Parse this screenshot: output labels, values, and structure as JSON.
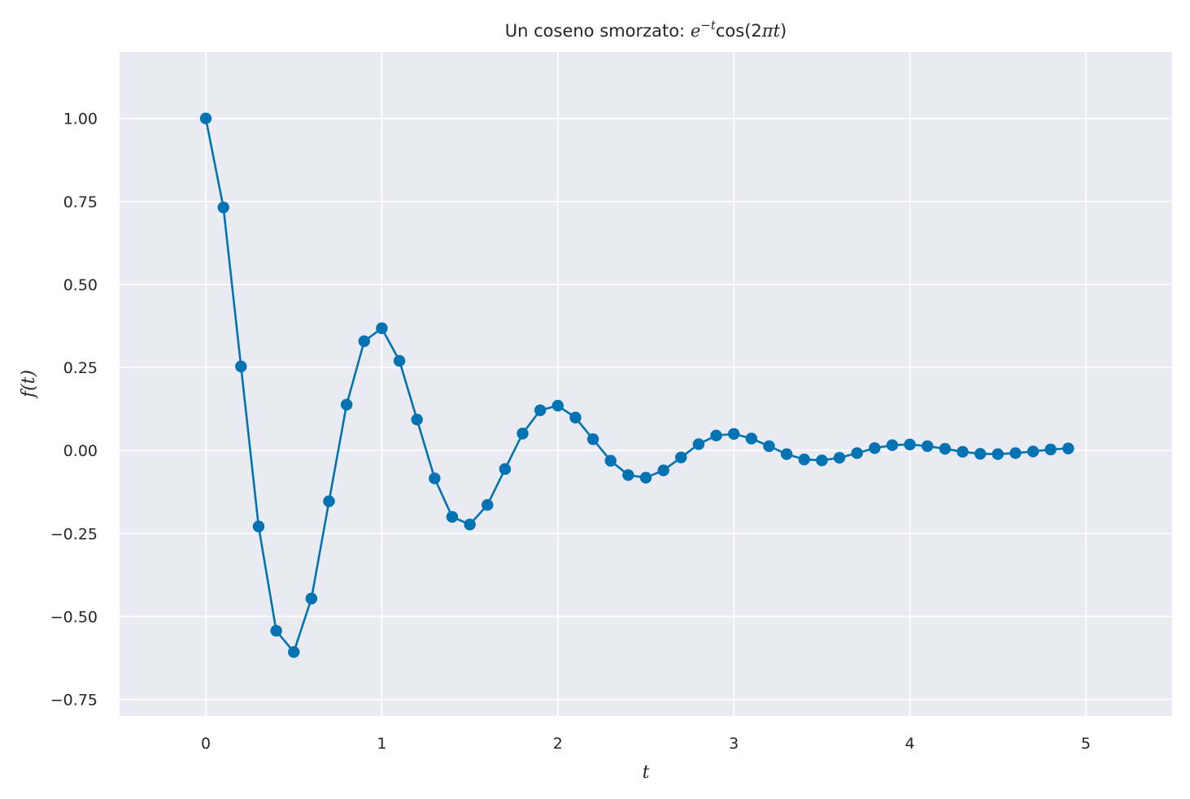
{
  "chart_data": {
    "type": "line",
    "title": {
      "prefix": "Un coseno smorzato: ",
      "e": "e",
      "exponent": "−t",
      "func": "cos",
      "open": "(2",
      "pi": "π",
      "t": "t",
      "close": ")"
    },
    "xlabel": "t",
    "ylabel": "f(t)",
    "xlim": [
      -0.49,
      5.49
    ],
    "ylim": [
      -0.8,
      1.2
    ],
    "xticks": [
      0,
      1,
      2,
      3,
      4,
      5
    ],
    "xtick_labels": [
      "0",
      "1",
      "2",
      "3",
      "4",
      "5"
    ],
    "yticks": [
      -0.75,
      -0.5,
      -0.25,
      0,
      0.25,
      0.5,
      0.75,
      1.0
    ],
    "ytick_labels": [
      "−0.75",
      "−0.50",
      "−0.25",
      "0.00",
      "0.25",
      "0.50",
      "0.75",
      "1.00"
    ],
    "grid": true,
    "colors": {
      "background": "#eaeaf2",
      "grid": "#ffffff",
      "series": "#0173b2"
    },
    "series": [
      {
        "x": [
          0.0,
          0.1,
          0.2,
          0.3,
          0.4,
          0.5,
          0.6,
          0.7,
          0.8,
          0.9,
          1.0,
          1.1,
          1.2,
          1.3,
          1.4,
          1.5,
          1.6,
          1.7,
          1.8,
          1.9,
          2.0,
          2.1,
          2.2,
          2.3,
          2.4,
          2.5,
          2.6,
          2.7,
          2.8,
          2.9,
          3.0,
          3.1,
          3.2,
          3.3,
          3.4,
          3.5,
          3.6,
          3.7,
          3.8,
          3.9,
          4.0,
          4.1,
          4.2,
          4.3,
          4.4,
          4.5,
          4.6,
          4.7,
          4.8,
          4.9
        ],
        "y": [
          1.0,
          0.732,
          0.253,
          -0.229,
          -0.543,
          -0.607,
          -0.446,
          -0.153,
          0.138,
          0.329,
          0.368,
          0.27,
          0.093,
          -0.084,
          -0.2,
          -0.223,
          -0.164,
          -0.056,
          0.051,
          0.121,
          0.135,
          0.099,
          0.034,
          -0.031,
          -0.074,
          -0.082,
          -0.06,
          -0.021,
          0.019,
          0.045,
          0.05,
          0.036,
          0.013,
          -0.011,
          -0.027,
          -0.03,
          -0.022,
          -0.008,
          0.007,
          0.016,
          0.018,
          0.013,
          0.005,
          -0.004,
          -0.01,
          -0.011,
          -0.008,
          -0.003,
          0.003,
          0.006
        ]
      }
    ]
  }
}
